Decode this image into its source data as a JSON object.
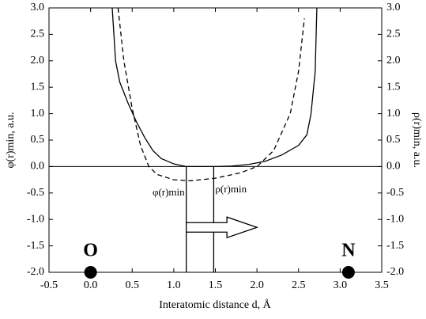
{
  "chart_data": {
    "type": "line",
    "xlabel": "Interatomic distance d, Å",
    "ylabel": "φ(r)min, a.u.",
    "y2label": "ρ(r)min, a.u.",
    "xlim": [
      -0.5,
      3.5
    ],
    "xticks": [
      -0.5,
      {
        "value": 0,
        "label": "0.0"
      },
      0.5,
      {
        "value": 1,
        "label": "1.0"
      },
      1.5,
      {
        "value": 2,
        "label": "2.0"
      },
      2.5,
      {
        "value": 3,
        "label": "3.0"
      },
      3.5
    ],
    "ylim": [
      -2,
      3
    ],
    "yticks": [
      {
        "value": -2,
        "label": "-2.0"
      },
      -1.5,
      {
        "value": -1,
        "label": "-1.0"
      },
      -0.5,
      {
        "value": 0,
        "label": "0.0"
      },
      0.5,
      {
        "value": 1,
        "label": "1.0"
      },
      1.5,
      {
        "value": 2,
        "label": "2.0"
      },
      2.5,
      {
        "value": 3,
        "label": "3.0"
      }
    ],
    "y2lim": [
      -2,
      3
    ],
    "y2ticks": [
      {
        "value": -2,
        "label": "-2.0"
      },
      -1.5,
      {
        "value": -1,
        "label": "-1.0"
      },
      -0.5,
      {
        "value": 0,
        "label": "0.0"
      },
      0.5,
      {
        "value": 1,
        "label": "1.0"
      },
      1.5,
      {
        "value": 2,
        "label": "2.0"
      },
      2.5,
      {
        "value": 3,
        "label": "3.0"
      }
    ],
    "series": [
      {
        "color": "#000000",
        "dashed": false,
        "x": [
          0.26,
          0.3,
          0.35,
          0.45,
          0.55,
          0.65,
          0.75,
          0.85,
          1.0,
          1.15,
          1.3,
          1.5,
          1.7,
          1.9,
          2.1,
          2.3,
          2.5,
          2.6,
          2.65,
          2.7,
          2.72
        ],
        "values": [
          3.0,
          2.0,
          1.6,
          1.2,
          0.85,
          0.55,
          0.3,
          0.15,
          0.05,
          0.0,
          0.0,
          0.0,
          0.01,
          0.04,
          0.1,
          0.22,
          0.4,
          0.6,
          1.0,
          1.8,
          3.0
        ]
      },
      {
        "color": "#000000",
        "dashed": true,
        "axis": "y2",
        "x": [
          0.33,
          0.4,
          0.5,
          0.6,
          0.7,
          0.8,
          1.0,
          1.2,
          1.5,
          1.8,
          2.0,
          2.2,
          2.4,
          2.5,
          2.57
        ],
        "values": [
          3.0,
          2.0,
          1.1,
          0.4,
          0.0,
          -0.15,
          -0.25,
          -0.27,
          -0.22,
          -0.12,
          0.0,
          0.3,
          1.0,
          1.8,
          2.8
        ]
      }
    ],
    "points": [
      {
        "label": "O",
        "x": 0,
        "y": -2
      },
      {
        "label": "N",
        "x": 3.1,
        "y": -2
      }
    ],
    "markers": [
      {
        "label": "φ(r)min",
        "x": 1.15
      },
      {
        "label": "ρ(r)min",
        "x": 1.48
      }
    ],
    "arrow": {
      "x": [
        1.15,
        2.0
      ],
      "y": -1.15
    }
  }
}
